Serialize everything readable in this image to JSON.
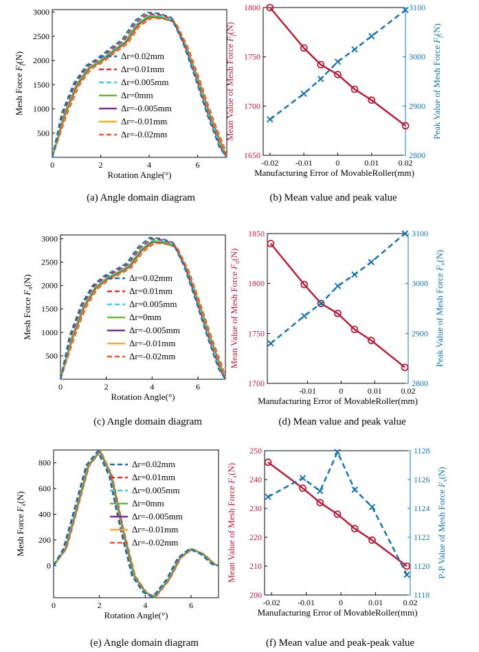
{
  "colors": {
    "axis": "#000000",
    "mean": "#b0203a",
    "peak": "#1a73a8",
    "series": [
      "#1d6fa3",
      "#c7373a",
      "#4fc3e6",
      "#6bb33b",
      "#7b2d8e",
      "#f2ae1d",
      "#e0582a"
    ],
    "series_dash": [
      true,
      true,
      true,
      false,
      false,
      false,
      true
    ]
  },
  "legend": [
    "Δr=0.02mm",
    "Δr=0.01mm",
    "Δr=0.005mm",
    "Δr=0mm",
    "Δr=-0.005mm",
    "Δr=-0.01mm",
    "Δr=-0.02mm"
  ],
  "captions": {
    "a": "(a) Angle domain diagram",
    "b": "(b) Mean value and peak value",
    "c": "(c) Angle domain diagram",
    "d": "(d) Mean value and peak value",
    "e": "(e) Angle domain diagram",
    "f": "(f) Mean value and peak-peak value"
  },
  "chart_data": [
    {
      "id": "a",
      "type": "line",
      "xlabel": "Rotation Angle(°)",
      "ylabel": "Mesh Force F_f(N)",
      "xlim": [
        0,
        7.2
      ],
      "ylim": [
        0,
        3050
      ],
      "xticks": [
        0,
        2,
        4,
        6
      ],
      "yticks": [
        500,
        1000,
        1500,
        2000,
        2500,
        3000
      ],
      "legend_position": "lower-center",
      "x": [
        0,
        0.5,
        1,
        1.5,
        2,
        2.5,
        3,
        3.5,
        4,
        4.5,
        5,
        5.5,
        6,
        6.5,
        7,
        7.2
      ],
      "base": [
        0,
        900,
        1500,
        1850,
        2000,
        2200,
        2380,
        2750,
        2920,
        2900,
        2820,
        2300,
        1600,
        850,
        200,
        0
      ],
      "offsets": [
        -0.1,
        -0.05,
        -0.02,
        0,
        0.02,
        0.05,
        0.1
      ],
      "amp": [
        0.025,
        0.015,
        0.007,
        0,
        -0.005,
        -0.01,
        -0.015
      ]
    },
    {
      "id": "b",
      "type": "line",
      "xlabel": "Manufacturing Error of MovableRoller(mm)",
      "ylabel": "Mean Value of Mesh Force F_f(N)",
      "ylabel2": "Peak Value of Mesh Force F_f(N)",
      "xlim": [
        -0.022,
        0.02
      ],
      "ylim": [
        1650,
        1800
      ],
      "ylim2": [
        2800,
        3100
      ],
      "xticks": [
        -0.02,
        -0.01,
        0,
        0.01,
        0.02
      ],
      "yticks": [
        1650,
        1700,
        1750,
        1800
      ],
      "yticks2": [
        2800,
        2900,
        3000,
        3100
      ],
      "x": [
        -0.02,
        -0.01,
        -0.005,
        0,
        0.005,
        0.01,
        0.02
      ],
      "series": [
        {
          "axis": "left",
          "values": [
            1800,
            1759,
            1742,
            1732,
            1717,
            1706,
            1680
          ]
        },
        {
          "axis": "right",
          "values": [
            2873,
            2925,
            2955,
            2990,
            3015,
            3042,
            3095
          ]
        }
      ]
    },
    {
      "id": "c",
      "type": "line",
      "xlabel": "Rotation Angle(°)",
      "ylabel": "Mesh Force F_n(N)",
      "xlim": [
        0,
        7.2
      ],
      "ylim": [
        0,
        3080
      ],
      "xticks": [
        0,
        2,
        4,
        6
      ],
      "yticks": [
        500,
        1000,
        1500,
        2000,
        2500,
        3000
      ],
      "legend_position": "lower-center",
      "x": [
        0,
        0.5,
        1,
        1.5,
        2,
        2.5,
        3,
        3.5,
        4,
        4.5,
        5,
        5.5,
        6,
        6.5,
        7,
        7.2
      ],
      "base": [
        0,
        900,
        1550,
        1950,
        2150,
        2280,
        2420,
        2760,
        2950,
        2930,
        2850,
        2350,
        1650,
        900,
        220,
        0
      ],
      "offsets": [
        -0.1,
        -0.05,
        -0.02,
        0,
        0.02,
        0.05,
        0.1
      ],
      "amp": [
        0.025,
        0.015,
        0.007,
        0,
        -0.005,
        -0.01,
        -0.015
      ]
    },
    {
      "id": "d",
      "type": "line",
      "xlabel": "Manufacturing Error of MovableRoller(mm)",
      "ylabel": "Mean Value of Mesh Force F_n(N)",
      "ylabel2": "Peak Value of Mesh Force F_n(N)",
      "xlim": [
        -0.022,
        0.02
      ],
      "ylim": [
        1700,
        1850
      ],
      "ylim2": [
        2800,
        3100
      ],
      "xticks": [
        -0.01,
        0,
        0.01,
        0.02
      ],
      "yticks": [
        1700,
        1750,
        1800,
        1850
      ],
      "yticks2": [
        2800,
        2900,
        3000,
        3100
      ],
      "x": [
        -0.021,
        -0.011,
        -0.006,
        -0.001,
        0.004,
        0.009,
        0.019
      ],
      "series": [
        {
          "axis": "left",
          "values": [
            1840,
            1799,
            1780,
            1770,
            1754,
            1743,
            1716
          ]
        },
        {
          "axis": "right",
          "values": [
            2880,
            2935,
            2960,
            2995,
            3018,
            3043,
            3100
          ]
        }
      ]
    },
    {
      "id": "e",
      "type": "line",
      "xlabel": "Rotation Angle(°)",
      "ylabel": "Mesh Force F_x(N)",
      "xlim": [
        0,
        7.2
      ],
      "ylim": [
        -250,
        900
      ],
      "xticks": [
        0,
        2,
        4,
        6
      ],
      "yticks": [
        0,
        200,
        400,
        600,
        800
      ],
      "legend_position": "top-right",
      "x": [
        0,
        0.5,
        1,
        1.5,
        2,
        2.5,
        3,
        3.5,
        4,
        4.4,
        5,
        5.5,
        6,
        6.5,
        7,
        7.2
      ],
      "base": [
        0,
        130,
        450,
        780,
        890,
        700,
        280,
        -80,
        -210,
        -245,
        -110,
        60,
        130,
        90,
        10,
        0
      ],
      "offsets": [
        -0.08,
        -0.05,
        -0.02,
        0,
        0.02,
        0.04,
        0.06
      ],
      "amp": [
        0,
        0,
        0,
        0,
        0,
        0,
        0
      ]
    },
    {
      "id": "f",
      "type": "line",
      "xlabel": "Manufacturing Error of MovableRoller(mm)",
      "ylabel": "Mean Value of Mesh Force F_x(N)",
      "ylabel2": "P-P Value of Mesh Force F_x(N)",
      "xlim": [
        -0.022,
        0.02
      ],
      "ylim": [
        200,
        250
      ],
      "ylim2": [
        1118,
        1128
      ],
      "xticks": [
        -0.02,
        -0.01,
        0,
        0.01,
        0.02
      ],
      "yticks": [
        200,
        210,
        220,
        230,
        240,
        250
      ],
      "yticks2": [
        1118,
        1120,
        1122,
        1124,
        1126,
        1128
      ],
      "x": [
        -0.021,
        -0.011,
        -0.006,
        -0.001,
        0.004,
        0.009,
        0.019
      ],
      "series": [
        {
          "axis": "left",
          "values": [
            246,
            237,
            232,
            228,
            223,
            219,
            210
          ]
        },
        {
          "axis": "right",
          "values": [
            1124.8,
            1126.1,
            1125.2,
            1127.9,
            1125.3,
            1124.1,
            1119.4
          ]
        }
      ]
    }
  ]
}
